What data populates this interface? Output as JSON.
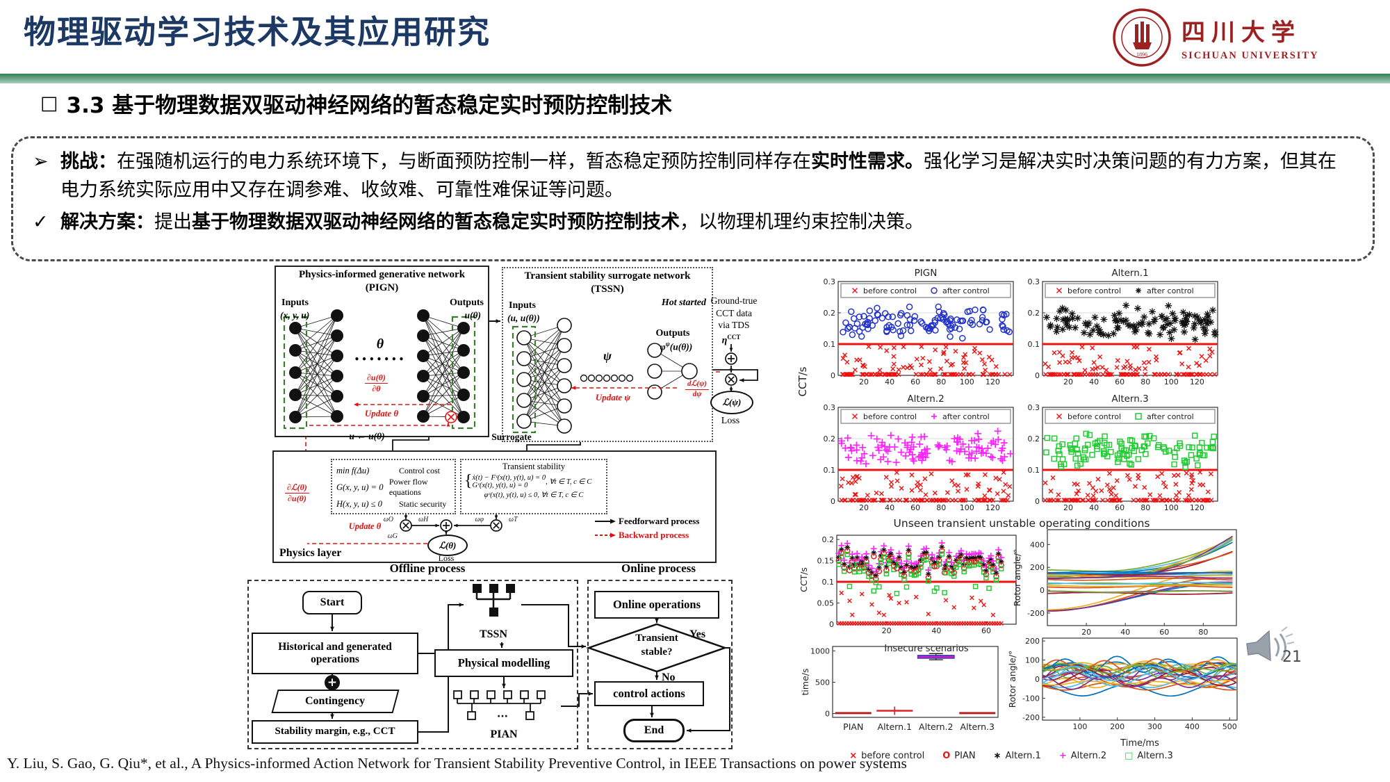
{
  "slide": {
    "title": "物理驱动学习技术及其应用研究",
    "section_bullet": "□",
    "section_heading": "3.3 基于物理数据双驱动神经网络的暂态稳定实时预防控制技术",
    "page_number": "21",
    "citation": "Y. Liu, S. Gao, G. Qiu*, et al., A Physics-informed Action Network for Transient Stability Preventive Control, in IEEE Transactions on power systems",
    "colors": {
      "title_blue": "#1c3864",
      "accent_green": "#2f7d55",
      "red": "#e01111",
      "seal_red": "#9e2121"
    }
  },
  "logo": {
    "zh": "四川大学",
    "en": "SICHUAN UNIVERSITY",
    "year": "1896"
  },
  "callout": {
    "challenge_bullet": "➢",
    "challenge_label": "挑战：",
    "challenge_text1": "在强随机运行的电力系统环境下，与断面预防控制一样，暂态稳定预防控制同样存在",
    "challenge_bold": "实时性需求。",
    "challenge_text2": "强化学习是解决实时决策问题的有力方案，但其在电力系统实际应用中又存在调参难、收敛难、可靠性难保证等问题。",
    "solution_bullet": "✓",
    "solution_label": "解决方案：",
    "solution_text1": "提出",
    "solution_bold": "基于物理数据双驱动神经网络的暂态稳定实时预防控制技术",
    "solution_text2": "，以物理机理约束控制决策。"
  },
  "pign": {
    "title1": "Physics-informed generative network",
    "title2": "(PIGN)",
    "inputs": "Inputs",
    "inputs_expr": "(x, y, u)",
    "outputs": "Outputs",
    "outputs_expr": "u(θ)",
    "theta": "θ",
    "dots": "•••••••",
    "grad_num": "∂u(θ)",
    "grad_den": "∂θ",
    "update": "Update θ"
  },
  "tssn": {
    "title1": "Transient stability surrogate network",
    "title2": "(TSSN)",
    "inputs": "Inputs",
    "inputs_expr": "(u, u(θ))",
    "hot": "Hot started",
    "psi": "ψ",
    "outputs": "Outputs",
    "outputs_base": "φ",
    "outputs_sup": "ψ",
    "outputs_arg": "(u(θ))",
    "update": "Update ψ",
    "grad_num": "dℒ(ψ)",
    "grad_den": "dψ"
  },
  "chain": {
    "gt1": "Ground-true",
    "gt2": "CCT data",
    "gt3": "via TDS",
    "eta": "η",
    "eta_sup": "CCT",
    "loss_expr": "ℒ(ψ)",
    "loss": "Loss"
  },
  "physics": {
    "u_assign": "u ← u(θ)",
    "surrogate": "Surrogate",
    "rows": [
      {
        "eq": "min f(Δu)",
        "desc": "Control cost"
      },
      {
        "eq": "G(x, y, u) = 0",
        "desc": "Power flow equations"
      },
      {
        "eq": "H(x, y, u) ≤ 0",
        "desc": "Static security"
      }
    ],
    "ts_title": "Transient stability",
    "ts_eq1": "ẋ(t) − Fᶜ(x(t), y(t), u) = 0",
    "ts_eq2": "Gᶜ(x(t), y(t), u) = 0",
    "ts_cond": ", ∀t ∈ T, c ∈ C",
    "ts_eq3": "φᶜ(x(t), y(t), u) ≤ 0, ∀t ∈ T, c ∈ C",
    "grad_num": "∂ℒ(θ)",
    "grad_den": "∂u(θ)",
    "update": "Update θ",
    "omega_left1": "ωO",
    "omega_left2": "ωH",
    "omega_left3": "ωG",
    "omega_right1": "ωφ",
    "omega_right2": "ωT",
    "loss_expr": "ℒ(θ)",
    "loss": "Loss",
    "legend_ff": "Feedforward process",
    "legend_bw": "Backward process",
    "label": "Physics layer"
  },
  "flow": {
    "offline_title": "Offline process",
    "online_title": "Online process",
    "start": "Start",
    "hist": "Historical and generated operations",
    "contingency": "Contingency",
    "margin": "Stability margin, e.g., CCT",
    "tssn": "TSSN",
    "pm": "Physical modelling",
    "pian": "PIAN",
    "online_ops": "Online operations",
    "dec1": "Transient",
    "dec2": "stable?",
    "yes": "Yes",
    "no": "No",
    "control": "control actions",
    "end": "End"
  },
  "chart_data": {
    "group_ylabel": "CCT/s",
    "group_xlabel": "Unseen transient unstable operating conditions",
    "threshold": {
      "y": 0.1,
      "color": "#ee1111",
      "width": 3
    },
    "panels": [
      {
        "id": "pl-pign",
        "type": "scatter",
        "title": "PIGN",
        "seed": 101,
        "xlim": [
          0,
          136
        ],
        "ylim": [
          0,
          0.3
        ],
        "xticks": [
          20,
          40,
          60,
          80,
          100,
          120
        ],
        "yticks": [
          0,
          0.1,
          0.2,
          0.3
        ],
        "grid_y": [
          0.2
        ],
        "after_marker": "o",
        "after_color": "#2233cc",
        "legend": [
          {
            "label": "before control",
            "marker": "x",
            "color": "#ee1111"
          },
          {
            "label": "after control",
            "marker": "o",
            "color": "#2233cc"
          }
        ],
        "after": {
          "n": 112,
          "y_min": 0.112,
          "y_max": 0.23
        },
        "before": {
          "n_scatter": 52,
          "y_min": 0.015,
          "y_max": 0.093,
          "n_floor": 80,
          "floor_y": 0.003
        }
      },
      {
        "id": "pl-a1",
        "type": "scatter",
        "title": "Altern.1",
        "seed": 102,
        "xlim": [
          0,
          136
        ],
        "ylim": [
          0,
          0.3
        ],
        "xticks": [
          20,
          40,
          60,
          80,
          100,
          120
        ],
        "yticks": [
          0,
          0.1,
          0.2,
          0.3
        ],
        "grid_y": [
          0.2
        ],
        "after_marker": "*",
        "after_color": "#111111",
        "legend": [
          {
            "label": "before control",
            "marker": "x",
            "color": "#ee1111"
          },
          {
            "label": "after control",
            "marker": "*",
            "color": "#111111"
          }
        ],
        "after": {
          "n": 112,
          "y_min": 0.112,
          "y_max": 0.23
        },
        "before": {
          "n_scatter": 52,
          "y_min": 0.015,
          "y_max": 0.093,
          "n_floor": 80,
          "floor_y": 0.003
        }
      },
      {
        "id": "pl-a2",
        "type": "scatter",
        "title": "Altern.2",
        "seed": 103,
        "xlim": [
          0,
          136
        ],
        "ylim": [
          0,
          0.3
        ],
        "xticks": [
          20,
          40,
          60,
          80,
          100,
          120
        ],
        "yticks": [
          0,
          0.1,
          0.2,
          0.3
        ],
        "grid_y": [
          0.2
        ],
        "after_marker": "+",
        "after_color": "#ff22ff",
        "legend": [
          {
            "label": "before control",
            "marker": "x",
            "color": "#ee1111"
          },
          {
            "label": "after control",
            "marker": "+",
            "color": "#ff22ff"
          }
        ],
        "after": {
          "n": 112,
          "y_min": 0.112,
          "y_max": 0.225
        },
        "before": {
          "n_scatter": 52,
          "y_min": 0.015,
          "y_max": 0.093,
          "n_floor": 80,
          "floor_y": 0.003
        }
      },
      {
        "id": "pl-a3",
        "type": "scatter",
        "title": "Altern.3",
        "seed": 104,
        "xlim": [
          0,
          136
        ],
        "ylim": [
          0,
          0.3
        ],
        "xticks": [
          20,
          40,
          60,
          80,
          100,
          120
        ],
        "yticks": [
          0,
          0.1,
          0.2,
          0.3
        ],
        "grid_y": [
          0.2
        ],
        "after_marker": "s",
        "after_color": "#22cc33",
        "legend": [
          {
            "label": "before control",
            "marker": "x",
            "color": "#ee1111"
          },
          {
            "label": "after control",
            "marker": "s",
            "color": "#22cc33"
          }
        ],
        "after": {
          "n": 112,
          "y_min": 0.105,
          "y_max": 0.225
        },
        "before": {
          "n_scatter": 52,
          "y_min": 0.015,
          "y_max": 0.093,
          "n_floor": 80,
          "floor_y": 0.003
        }
      }
    ],
    "insecure": {
      "id": "pl-insecure",
      "ylabel": "CCT/s",
      "xlabel": "Insecure scenarios",
      "seed": 105,
      "xlim": [
        0,
        72
      ],
      "ylim": [
        0,
        0.21
      ],
      "xticks": [
        20,
        40,
        60
      ],
      "yticks": [
        0,
        0.05,
        0.1,
        0.15,
        0.2
      ],
      "n_scenarios": 66,
      "cluster_y": [
        0.1,
        0.185
      ],
      "markers": [
        {
          "marker": "+",
          "color": "#ff22ff"
        },
        {
          "marker": "*",
          "color": "#111111"
        },
        {
          "marker": "o",
          "color": "#dd2222"
        },
        {
          "marker": "s",
          "color": "#22cc33"
        }
      ],
      "before_color": "#ee1111"
    },
    "rotor_unstable": {
      "id": "pl-rotor1",
      "ylabel": "Rotor angle/°",
      "seed": 106,
      "xlim": [
        0,
        97
      ],
      "ylim": [
        -310,
        530
      ],
      "xticks": [
        20,
        40,
        60,
        80
      ],
      "yticks": [
        -200,
        0,
        200,
        400
      ],
      "n_lines": 26
    },
    "time_box": {
      "id": "pl-box",
      "ylabel": "time/s",
      "ylim": [
        -60,
        1070
      ],
      "yticks": [
        0,
        500,
        1000
      ],
      "categories": [
        "PIAN",
        "Altern.1",
        "Altern.2",
        "Altern.3"
      ],
      "boxes": [
        {
          "type": "line",
          "median": 8,
          "color": "#b22222"
        },
        {
          "type": "cross",
          "median": 45,
          "lo": 25,
          "hi": 66,
          "color": "#e02222"
        },
        {
          "type": "box",
          "median": 903,
          "q1": 884,
          "q3": 925,
          "lo": 858,
          "hi": 956,
          "box_color": "#3333aa",
          "median_color": "#cc22cc"
        },
        {
          "type": "line",
          "median": 8,
          "color": "#b22222"
        }
      ]
    },
    "rotor_stable": {
      "id": "pl-rotor2",
      "ylabel": "Rotor angle/°",
      "xlabel": "Time/ms",
      "seed": 107,
      "xlim": [
        0,
        520
      ],
      "ylim": [
        -215,
        215
      ],
      "xticks": [
        100,
        200,
        300,
        400,
        500
      ],
      "yticks": [
        -200,
        -100,
        0,
        100,
        200
      ],
      "n_lines": 27
    },
    "bottom_legend": [
      {
        "marker": "x",
        "color": "#ee1111",
        "label": "before control"
      },
      {
        "marker": "o",
        "color": "#ee1111",
        "label": "PIAN"
      },
      {
        "marker": "*",
        "color": "#111111",
        "label": "Altern.1"
      },
      {
        "marker": "+",
        "color": "#ff22ff",
        "label": "Altern.2"
      },
      {
        "marker": "s",
        "color": "#22cc33",
        "label": "Altern.3"
      }
    ],
    "palette": [
      "#0072BD",
      "#D95319",
      "#EDB120",
      "#7E2F8E",
      "#77AC30",
      "#4DBEEE",
      "#A2142F"
    ]
  }
}
